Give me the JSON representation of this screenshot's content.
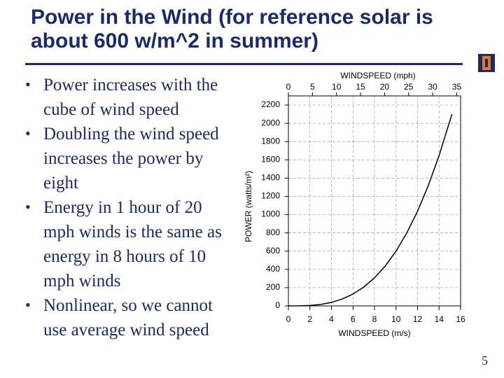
{
  "slide": {
    "title": "Power in the Wind (for reference solar is about 600 w/m^2 in summer)",
    "bullets": [
      "Power increases with the cube of wind speed",
      "Doubling the wind speed increases the power by eight",
      "Energy in 1 hour of 20 mph winds is the same as energy in 8 hours of 10 mph winds",
      "Nonlinear, so we cannot use average wind speed"
    ],
    "page_number": "5"
  },
  "chart_data": {
    "type": "line",
    "x_label": "WINDSPEED (m/s)",
    "x2_label": "WINDSPEED (mph)",
    "y_label": "POWER (watts/m²)",
    "x": [
      0,
      1,
      2,
      3,
      4,
      5,
      6,
      7,
      8,
      9,
      10,
      11,
      12,
      13,
      14,
      15,
      15.2
    ],
    "values": [
      0,
      1,
      5,
      16,
      38,
      75,
      130,
      206,
      307,
      437,
      600,
      799,
      1037,
      1318,
      1646,
      2025,
      2100
    ],
    "color": "#000000",
    "xlim": [
      0,
      16
    ],
    "xticks": [
      0,
      2,
      4,
      6,
      8,
      10,
      12,
      14,
      16
    ],
    "x2lim": [
      0,
      35.8
    ],
    "x2ticks": [
      0,
      5,
      10,
      15,
      20,
      25,
      30,
      35
    ],
    "ylim": [
      0,
      2300
    ],
    "yticks": [
      0,
      200,
      400,
      600,
      800,
      1000,
      1200,
      1400,
      1600,
      1800,
      2000,
      2200
    ],
    "grid": true
  }
}
